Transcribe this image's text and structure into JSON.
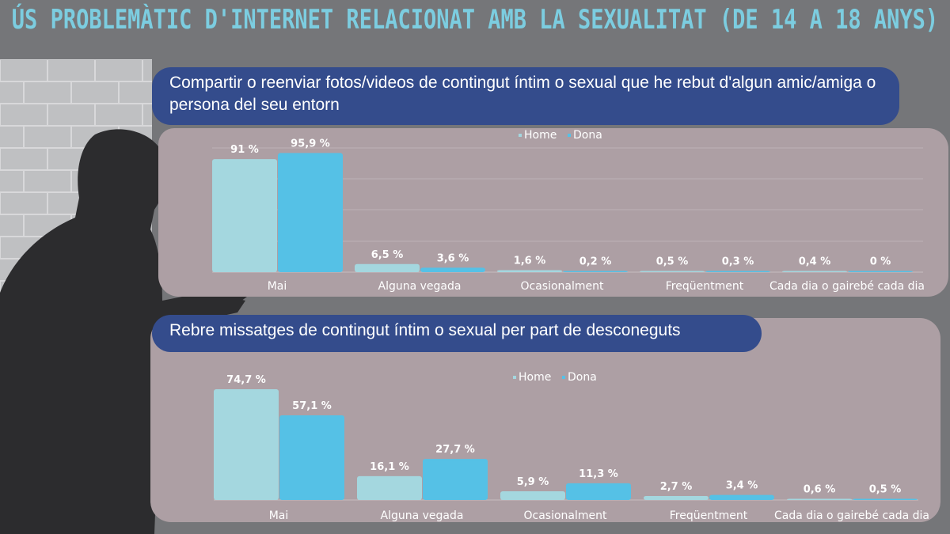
{
  "title": "ÚS PROBLEMÀTIC D'INTERNET RELACIONAT AMB LA SEXUALITAT (DE 14 A 18 ANYS)",
  "colors": {
    "home": "#a4d7df",
    "dona": "#55c1e6",
    "pill": "#344c8c",
    "panel": "#ad9fa4",
    "title": "#7ccde0"
  },
  "chart_data": [
    {
      "type": "bar",
      "title": "Compartir o reenviar fotos/videos de contingut íntim o sexual que he rebut d'algun amic/amiga o persona del seu entorn",
      "categories": [
        "Mai",
        "Alguna vegada",
        "Ocasionalment",
        "Freqüentment",
        "Cada dia o gairebé cada dia"
      ],
      "legend": [
        "Home",
        "Dona"
      ],
      "legend_position": "top",
      "grid": true,
      "series": [
        {
          "name": "Home",
          "values": [
            91,
            6.5,
            1.6,
            0.5,
            0.4
          ],
          "labels": [
            "91  %",
            "6,5 %",
            "1,6 %",
            "0,5  %",
            "0,4  %"
          ]
        },
        {
          "name": "Dona",
          "values": [
            95.9,
            3.6,
            0.2,
            0.3,
            0
          ],
          "labels": [
            "95,9 %",
            "3,6  %",
            "0,2 %",
            "0,3 %",
            "0 %"
          ]
        }
      ]
    },
    {
      "type": "bar",
      "title": "Rebre missatges de contingut íntim o sexual per part de desconeguts",
      "categories": [
        "Mai",
        "Alguna vegada",
        "Ocasionalment",
        "Freqüentment",
        "Cada dia o gairebé cada dia"
      ],
      "legend": [
        "Home",
        "Dona"
      ],
      "legend_position": "top",
      "grid": false,
      "series": [
        {
          "name": "Home",
          "values": [
            74.7,
            16.1,
            5.9,
            2.7,
            0.6
          ],
          "labels": [
            "74,7 %",
            "16,1 %",
            "5,9 %",
            "2,7  %",
            "0,6 %"
          ]
        },
        {
          "name": "Dona",
          "values": [
            57.1,
            27.7,
            11.3,
            3.4,
            0.5
          ],
          "labels": [
            "57,1 %",
            "27,7 %",
            "11,3 %",
            "3,4 %",
            "0,5 %"
          ]
        }
      ]
    }
  ]
}
